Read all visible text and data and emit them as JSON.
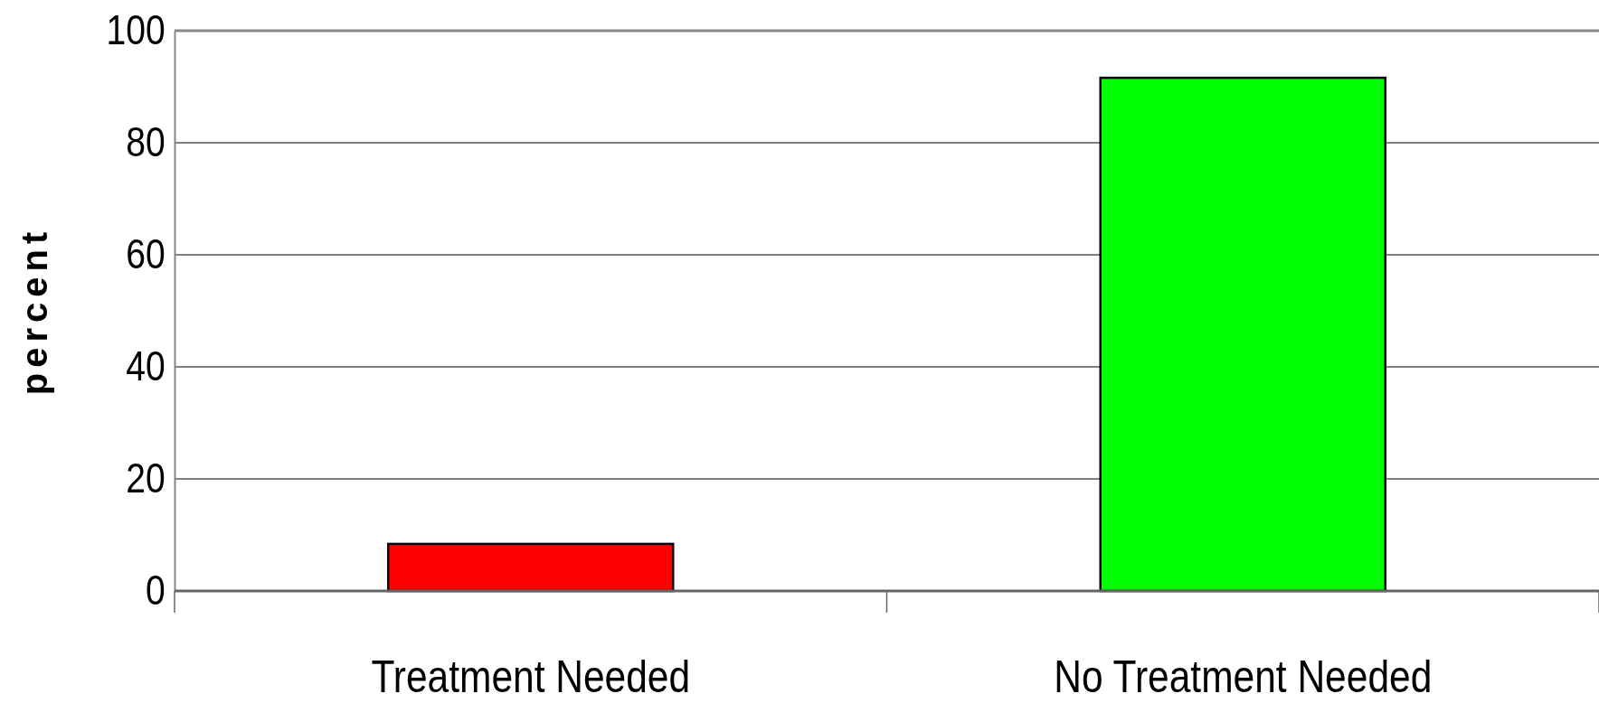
{
  "chart_data": {
    "type": "bar",
    "ylabel": "percent",
    "categories": [
      "Treatment Needed",
      "No Treatment Needed"
    ],
    "values": [
      8.4,
      91.6
    ],
    "colors": [
      "#ff0000",
      "#00ff00"
    ],
    "ylim": [
      0,
      100
    ],
    "yticks": [
      0,
      20,
      40,
      60,
      80,
      100
    ],
    "grid": "y"
  }
}
